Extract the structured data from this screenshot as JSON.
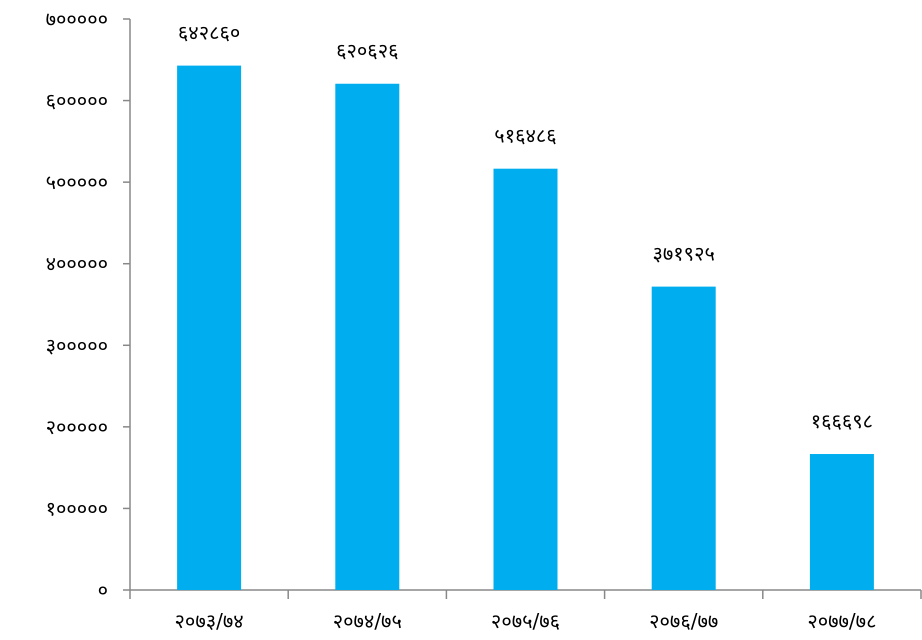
{
  "chart_data": {
    "type": "bar",
    "title": "",
    "xlabel": "",
    "ylabel": "",
    "ylim": [
      0,
      700000
    ],
    "grid": false,
    "legend": "none",
    "bar_color": "#00AEEF",
    "y_ticks": [
      {
        "value": 0,
        "label": "०"
      },
      {
        "value": 100000,
        "label": "१०००००"
      },
      {
        "value": 200000,
        "label": "२०००००"
      },
      {
        "value": 300000,
        "label": "३०००००"
      },
      {
        "value": 400000,
        "label": "४०००००"
      },
      {
        "value": 500000,
        "label": "५०००००"
      },
      {
        "value": 600000,
        "label": "६०००००"
      },
      {
        "value": 700000,
        "label": "७०००००"
      }
    ],
    "categories": [
      "२०७३/७४",
      "२०७४/७५",
      "२०७५/७६",
      "२०७६/७७",
      "२०७७/७८"
    ],
    "values": [
      642860,
      620626,
      516486,
      371925,
      166698
    ],
    "value_labels": [
      "६४२८६०",
      "६२०६२६",
      "५१६४८६",
      "३७१९२५",
      "१६६६९८"
    ]
  }
}
